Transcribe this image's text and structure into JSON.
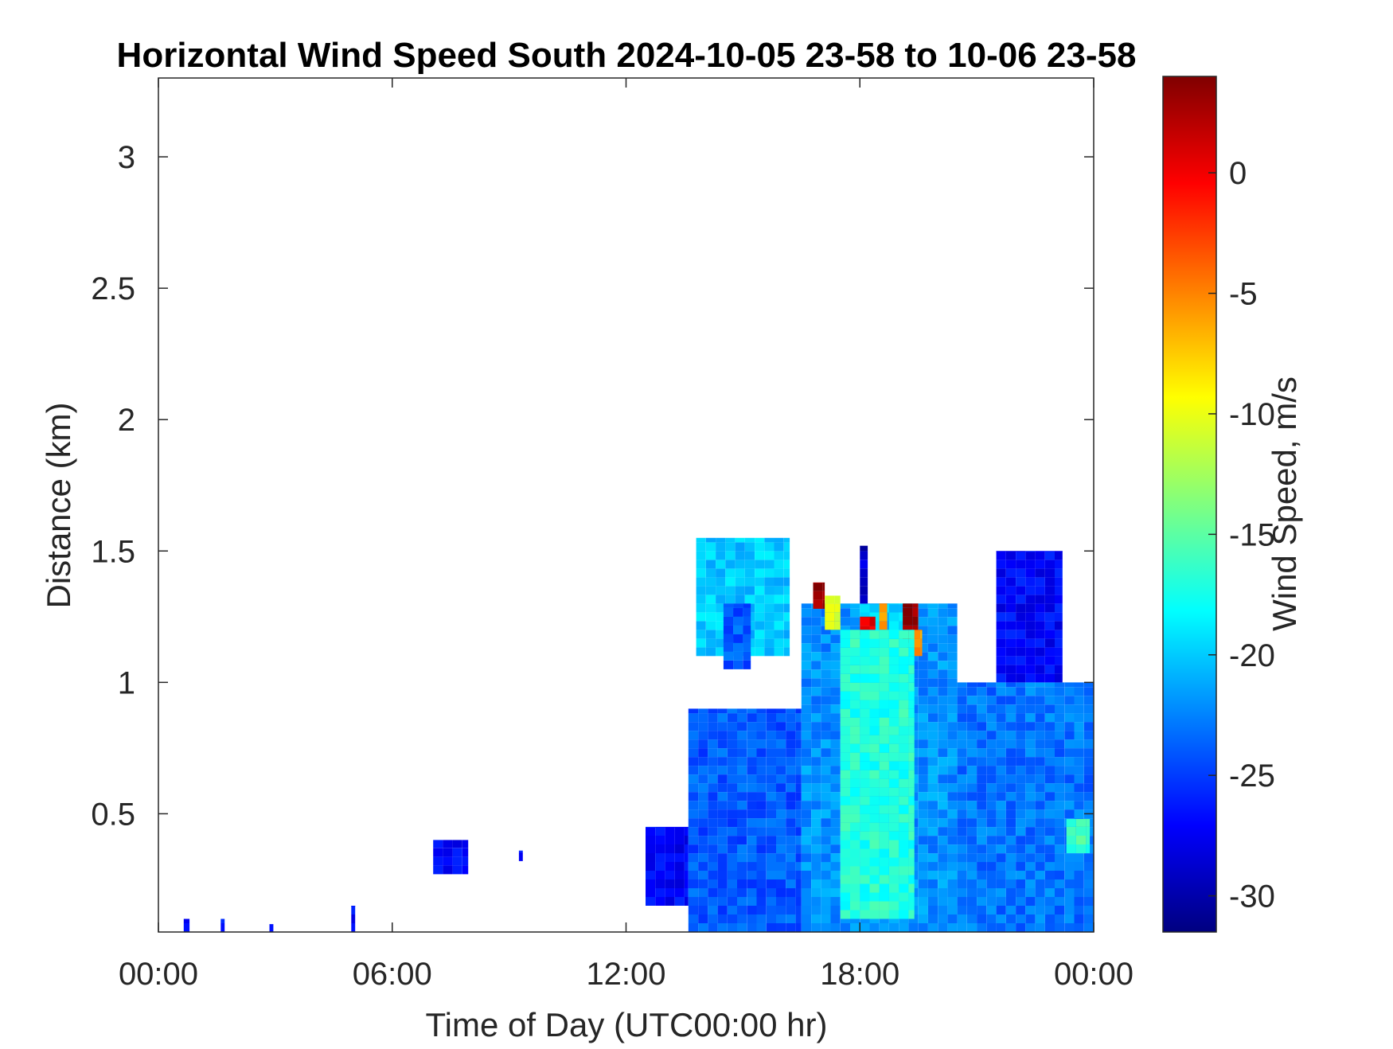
{
  "chart_data": {
    "type": "heatmap",
    "title": "Horizontal Wind Speed South 2024-10-05 23-58 to 10-06 23-58",
    "xlabel": "Time of Day (UTC00:00 hr)",
    "ylabel": "Distance (km)",
    "x_unit": "hour",
    "xlim": [
      0,
      24
    ],
    "ylim": [
      0.05,
      3.3
    ],
    "x_ticks": [
      {
        "value": 0,
        "label": "00:00"
      },
      {
        "value": 6,
        "label": "06:00"
      },
      {
        "value": 12,
        "label": "12:00"
      },
      {
        "value": 18,
        "label": "18:00"
      },
      {
        "value": 24,
        "label": "00:00"
      }
    ],
    "y_ticks": [
      {
        "value": 0.5,
        "label": "0.5"
      },
      {
        "value": 1,
        "label": "1"
      },
      {
        "value": 1.5,
        "label": "1.5"
      },
      {
        "value": 2,
        "label": "2"
      },
      {
        "value": 2.5,
        "label": "2.5"
      },
      {
        "value": 3,
        "label": "3"
      }
    ],
    "colorbar": {
      "label": "Wind Speed, m/s",
      "colormap": "jet",
      "clim": [
        -31.5,
        4
      ],
      "ticks": [
        {
          "value": 0,
          "label": "0"
        },
        {
          "value": -5,
          "label": "-5"
        },
        {
          "value": -10,
          "label": "-10"
        },
        {
          "value": -15,
          "label": "-15"
        },
        {
          "value": -20,
          "label": "-20"
        },
        {
          "value": -25,
          "label": "-25"
        },
        {
          "value": -30,
          "label": "-30"
        }
      ]
    },
    "grid": false,
    "cells": {
      "x_step_hours": 0.25,
      "y_step_km": 0.0333,
      "regions": [
        {
          "x": [
            0.65,
            0.8
          ],
          "y": [
            0.05,
            0.1
          ],
          "value": -27
        },
        {
          "x": [
            1.6,
            1.7
          ],
          "y": [
            0.05,
            0.1
          ],
          "value": -27
        },
        {
          "x": [
            2.85,
            2.95
          ],
          "y": [
            0.05,
            0.08
          ],
          "value": -27
        },
        {
          "x": [
            4.95,
            5.05
          ],
          "y": [
            0.05,
            0.15
          ],
          "value": -27
        },
        {
          "x": [
            7.05,
            7.95
          ],
          "y": [
            0.27,
            0.4
          ],
          "value": -27
        },
        {
          "x": [
            9.25,
            9.35
          ],
          "y": [
            0.32,
            0.36
          ],
          "value": -27
        },
        {
          "x": [
            12.5,
            13.6
          ],
          "y": [
            0.15,
            0.45
          ],
          "value": -27
        },
        {
          "x": [
            13.6,
            16.5
          ],
          "y": [
            0.05,
            0.9
          ],
          "value": -24
        },
        {
          "x": [
            16.5,
            20.5
          ],
          "y": [
            0.05,
            1.3
          ],
          "value": -22
        },
        {
          "x": [
            18.0,
            19.2
          ],
          "y": [
            0.8,
            1.3
          ],
          "value": -20
        },
        {
          "x": [
            20.5,
            24.0
          ],
          "y": [
            0.05,
            1.0
          ],
          "value": -23
        },
        {
          "x": [
            21.5,
            23.2
          ],
          "y": [
            1.0,
            1.5
          ],
          "value": -27
        },
        {
          "x": [
            13.8,
            16.2
          ],
          "y": [
            1.1,
            1.55
          ],
          "value": -20
        },
        {
          "x": [
            14.5,
            15.2
          ],
          "y": [
            1.05,
            1.3
          ],
          "value": -24
        },
        {
          "x": [
            16.8,
            17.1
          ],
          "y": [
            1.28,
            1.38
          ],
          "value": 3
        },
        {
          "x": [
            17.1,
            17.5
          ],
          "y": [
            1.2,
            1.33
          ],
          "value": -10
        },
        {
          "x": [
            18.0,
            18.4
          ],
          "y": [
            1.18,
            1.25
          ],
          "value": 1
        },
        {
          "x": [
            18.5,
            18.7
          ],
          "y": [
            1.2,
            1.3
          ],
          "value": -5
        },
        {
          "x": [
            19.1,
            19.5
          ],
          "y": [
            1.15,
            1.3
          ],
          "value": 3
        },
        {
          "x": [
            19.3,
            19.6
          ],
          "y": [
            1.1,
            1.2
          ],
          "value": -6
        },
        {
          "x": [
            17.5,
            19.4
          ],
          "y": [
            0.1,
            1.2
          ],
          "value": -17
        },
        {
          "x": [
            18.0,
            18.2
          ],
          "y": [
            1.3,
            1.52
          ],
          "value": -29
        },
        {
          "x": [
            23.3,
            23.9
          ],
          "y": [
            0.35,
            0.48
          ],
          "value": -16
        }
      ]
    }
  }
}
